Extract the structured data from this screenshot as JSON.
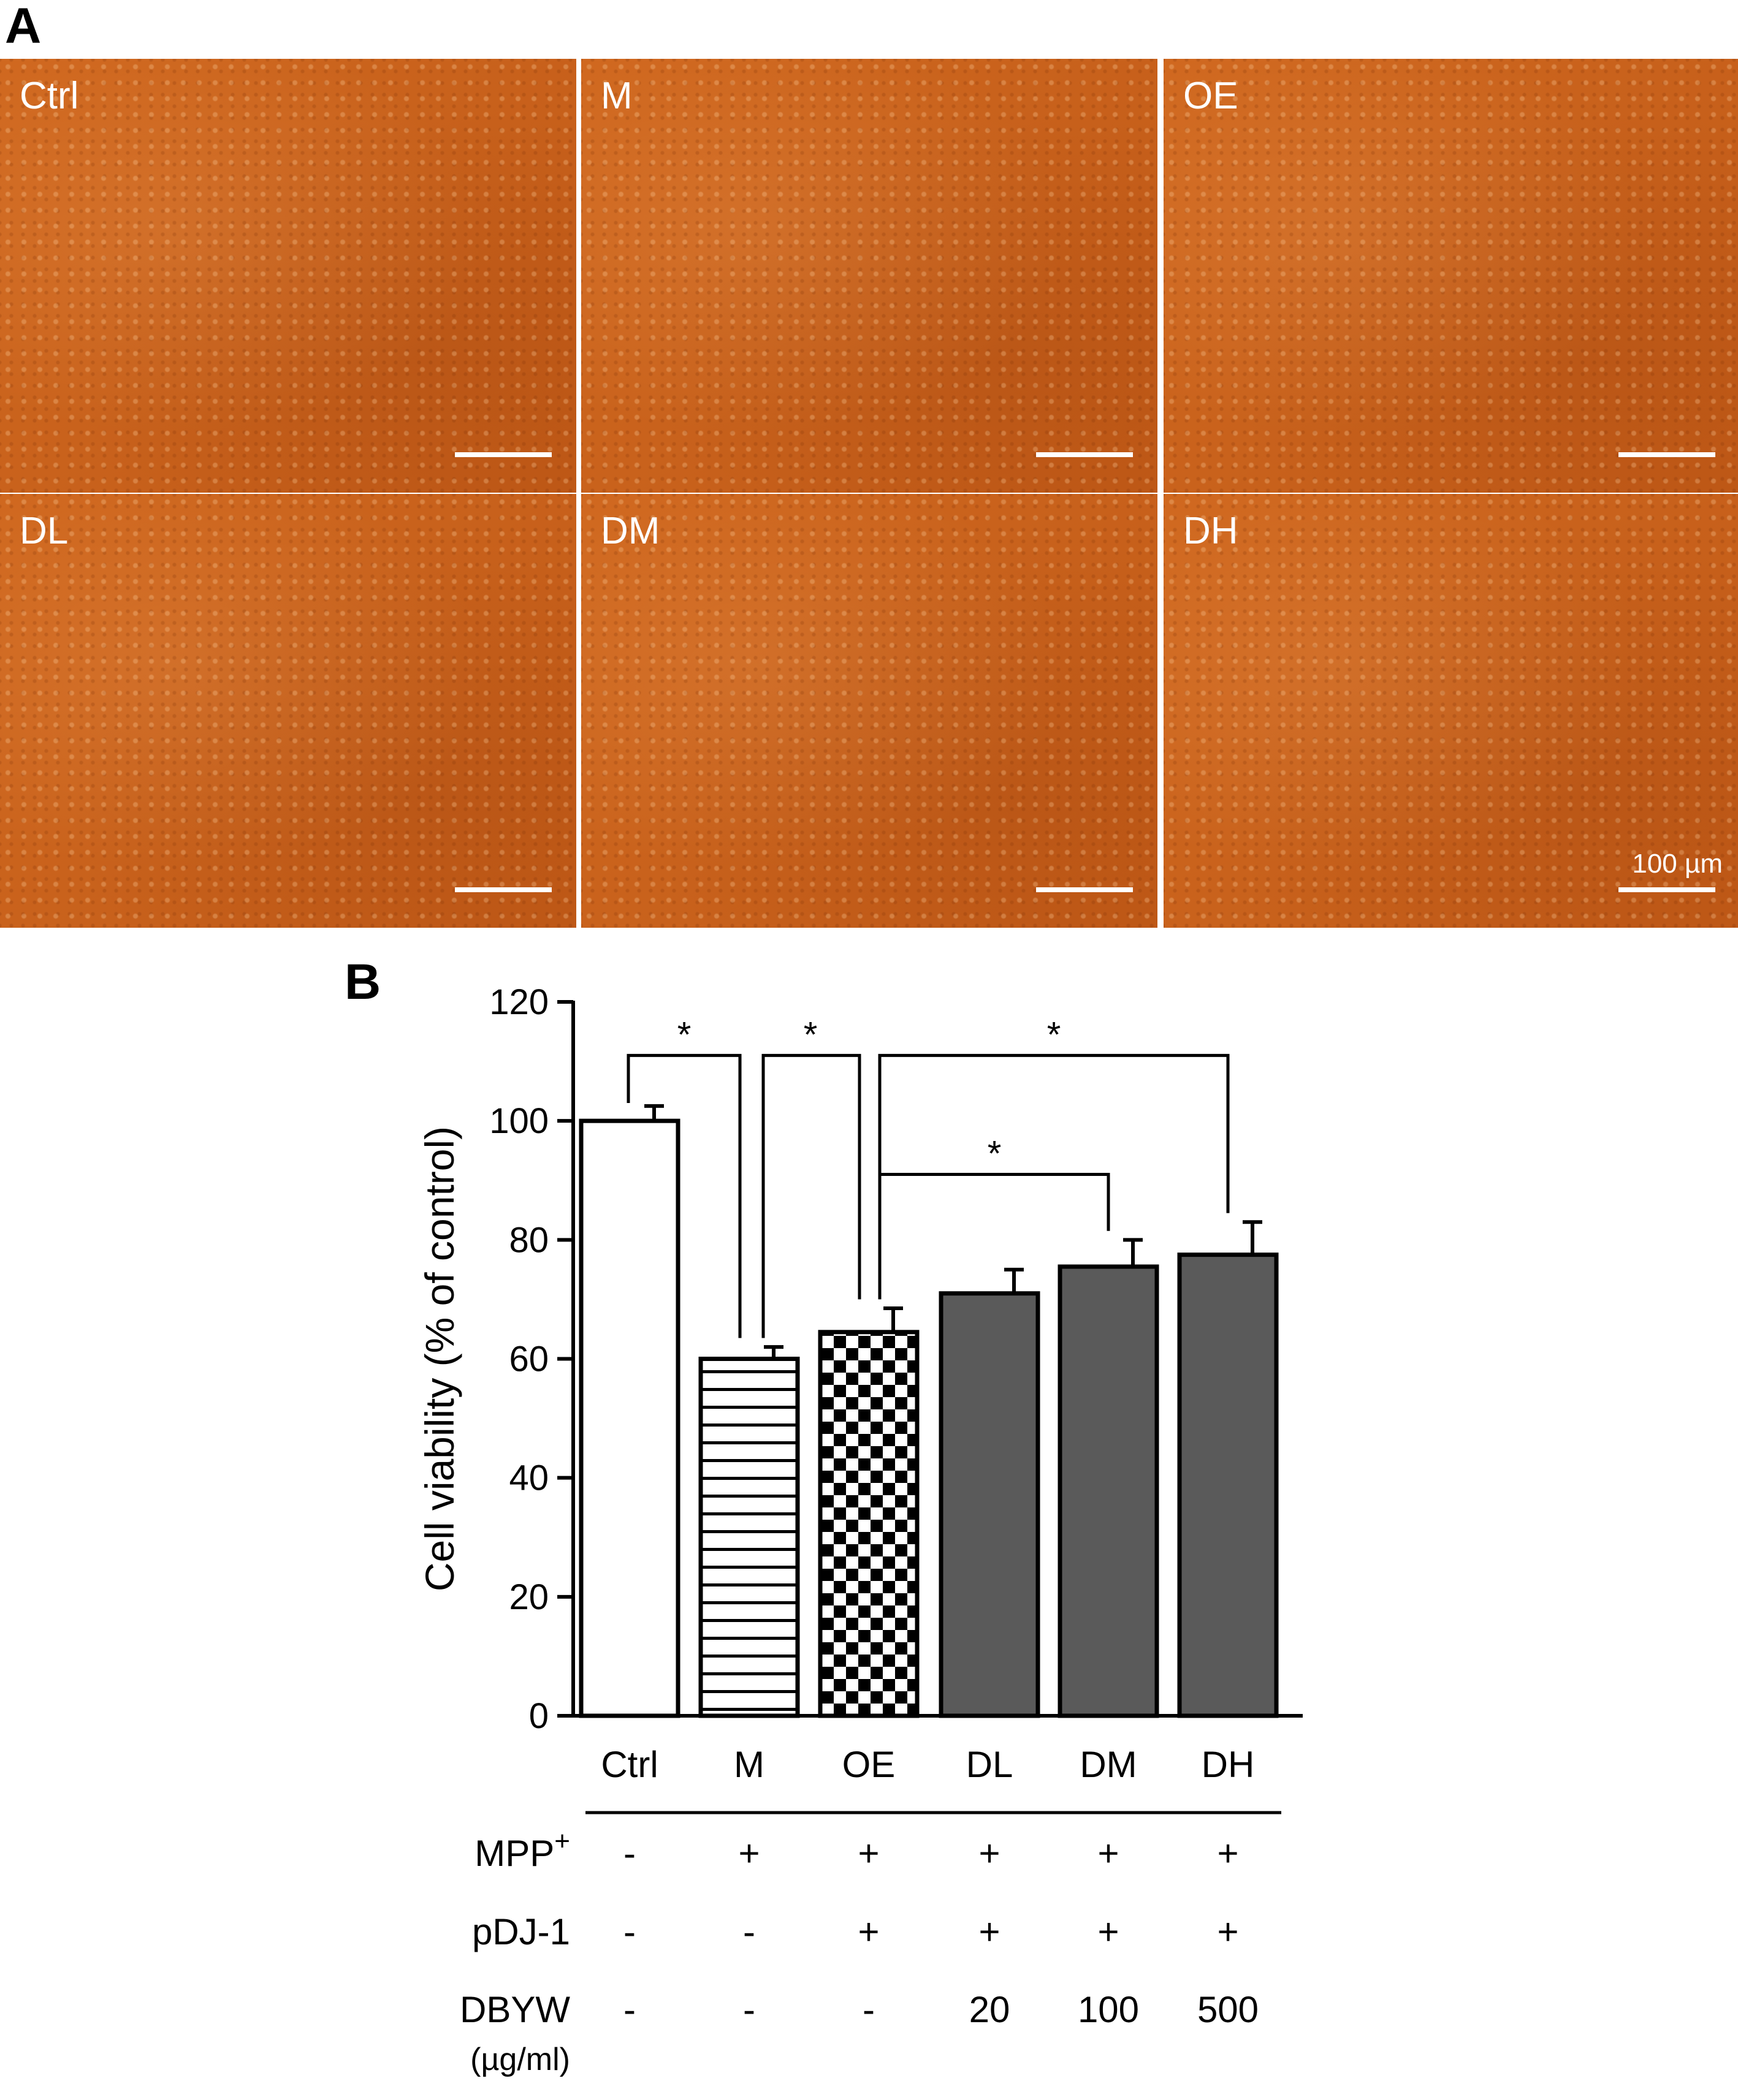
{
  "panel_a": {
    "letter": "A",
    "images": [
      {
        "label": "Ctrl"
      },
      {
        "label": "M"
      },
      {
        "label": "OE"
      },
      {
        "label": "DL"
      },
      {
        "label": "DM"
      },
      {
        "label": "DH"
      }
    ],
    "scale_text": "100 µm",
    "tint_color": "#c8621c"
  },
  "panel_b": {
    "letter": "B",
    "treatment_rows": [
      {
        "label": "MPP",
        "sup": "+",
        "values": [
          "-",
          "+",
          "+",
          "+",
          "+",
          "+"
        ]
      },
      {
        "label": "pDJ-1",
        "sup": "",
        "values": [
          "-",
          "-",
          "+",
          "+",
          "+",
          "+"
        ]
      },
      {
        "label": "DBYW",
        "sup": "",
        "sub": "(µg/ml)",
        "values": [
          "-",
          "-",
          "-",
          "20",
          "100",
          "500"
        ]
      }
    ]
  },
  "chart_data": {
    "type": "bar",
    "ylabel": "Cell viability (% of control)",
    "ylim": [
      0,
      120
    ],
    "yticks": [
      0,
      20,
      40,
      60,
      80,
      100,
      120
    ],
    "categories": [
      "Ctrl",
      "M",
      "OE",
      "DL",
      "DM",
      "DH"
    ],
    "values": [
      100,
      60,
      64.5,
      71,
      75.5,
      77.5
    ],
    "errors": [
      2.5,
      2,
      4,
      4,
      4.5,
      5.5
    ],
    "bar_patterns": [
      "white",
      "horizontal-lines",
      "checkerboard",
      "solid-gray",
      "solid-gray",
      "solid-gray"
    ],
    "bar_fill_color": "#5a5a5a",
    "significance": [
      {
        "from": "Ctrl",
        "to": "M",
        "label": "*"
      },
      {
        "from": "M",
        "to": "OE",
        "label": "*"
      },
      {
        "from": "OE",
        "to": "DH",
        "label": "*"
      },
      {
        "from": "OE",
        "to": "DM",
        "label": "*"
      }
    ]
  }
}
